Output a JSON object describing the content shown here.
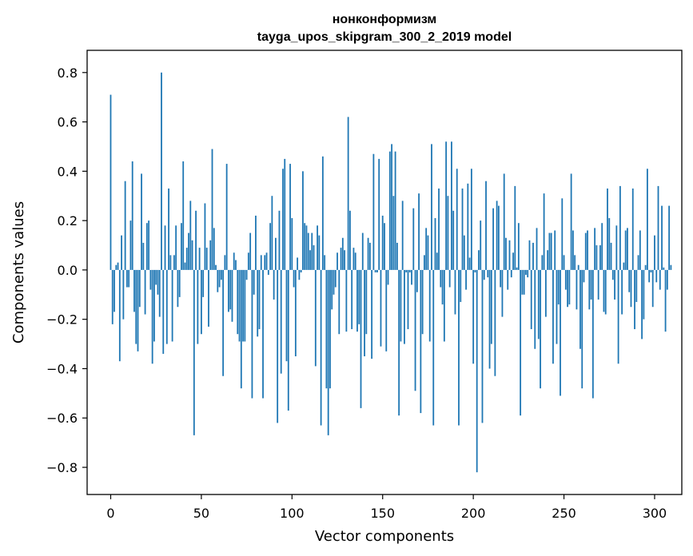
{
  "chart_data": {
    "type": "bar",
    "title": "нонконформизм",
    "subtitle": "tayga_upos_skipgram_300_2_2019 model",
    "xlabel": "Vector components",
    "ylabel": "Components values",
    "xlim": [
      -13,
      315
    ],
    "ylim": [
      -0.91,
      0.89
    ],
    "x_ticks": [
      0,
      50,
      100,
      150,
      200,
      250,
      300
    ],
    "y_ticks": [
      -0.8,
      -0.6,
      -0.4,
      -0.2,
      0.0,
      0.2,
      0.4,
      0.6,
      0.8
    ],
    "x_tick_labels": [
      "0",
      "50",
      "100",
      "150",
      "200",
      "250",
      "300"
    ],
    "y_tick_labels": [
      "−0.8",
      "−0.6",
      "−0.4",
      "−0.2",
      "0.0",
      "0.2",
      "0.4",
      "0.6",
      "0.8"
    ],
    "bar_color": "#1f77b4",
    "grid": false,
    "values": [
      0.71,
      -0.22,
      -0.17,
      0.02,
      0.03,
      -0.37,
      0.14,
      -0.2,
      0.36,
      -0.07,
      -0.07,
      0.2,
      0.44,
      -0.17,
      -0.3,
      -0.33,
      -0.15,
      0.39,
      0.11,
      -0.18,
      0.19,
      0.2,
      -0.08,
      -0.38,
      -0.29,
      -0.06,
      -0.1,
      -0.19,
      0.8,
      -0.34,
      0.18,
      -0.3,
      0.33,
      0.06,
      -0.29,
      0.06,
      0.18,
      -0.15,
      -0.11,
      0.19,
      0.44,
      0.03,
      0.09,
      0.15,
      0.28,
      0.12,
      -0.67,
      0.24,
      -0.3,
      0.09,
      -0.26,
      -0.11,
      0.27,
      0.09,
      -0.23,
      0.12,
      0.49,
      0.17,
      0.02,
      -0.09,
      -0.07,
      -0.04,
      -0.43,
      0.06,
      0.43,
      -0.17,
      -0.16,
      -0.21,
      0.07,
      0.04,
      -0.26,
      -0.29,
      -0.48,
      -0.29,
      -0.29,
      -0.04,
      0.07,
      0.15,
      -0.52,
      -0.1,
      0.22,
      -0.27,
      -0.24,
      0.06,
      -0.52,
      0.06,
      0.07,
      -0.02,
      0.19,
      0.3,
      -0.12,
      0.13,
      -0.62,
      0.24,
      -0.42,
      0.41,
      0.45,
      -0.37,
      -0.57,
      0.43,
      0.21,
      -0.07,
      -0.35,
      0.05,
      -0.04,
      -0.01,
      0.4,
      0.19,
      0.18,
      0.15,
      0.08,
      0.15,
      0.1,
      -0.39,
      0.18,
      0.14,
      -0.63,
      0.46,
      0.06,
      -0.48,
      -0.67,
      -0.48,
      -0.16,
      -0.1,
      -0.07,
      0.07,
      -0.26,
      0.09,
      0.13,
      0.08,
      -0.25,
      0.62,
      0.24,
      -0.24,
      0.09,
      0.07,
      -0.25,
      -0.22,
      -0.56,
      0.15,
      -0.35,
      -0.26,
      0.13,
      0.11,
      -0.36,
      0.47,
      -0.01,
      -0.01,
      0.45,
      -0.31,
      0.22,
      0.19,
      -0.33,
      -0.06,
      0.48,
      0.51,
      0.3,
      0.48,
      0.11,
      -0.59,
      -0.29,
      0.28,
      -0.3,
      -0.01,
      -0.24,
      -0.01,
      -0.06,
      0.25,
      -0.49,
      -0.09,
      0.31,
      -0.58,
      -0.26,
      0.06,
      0.17,
      0.14,
      -0.29,
      0.51,
      -0.63,
      0.21,
      0.07,
      0.33,
      -0.07,
      -0.14,
      -0.29,
      0.52,
      0.3,
      -0.07,
      0.52,
      0.24,
      -0.18,
      0.41,
      -0.63,
      -0.13,
      0.33,
      0.14,
      -0.08,
      0.35,
      0.05,
      0.41,
      -0.38,
      -0.01,
      -0.82,
      0.08,
      0.2,
      -0.62,
      -0.04,
      0.36,
      -0.03,
      -0.4,
      -0.3,
      0.25,
      -0.43,
      0.28,
      0.26,
      -0.07,
      -0.19,
      0.39,
      0.13,
      -0.08,
      0.12,
      -0.03,
      0.07,
      0.34,
      0.01,
      0.19,
      -0.59,
      -0.1,
      -0.1,
      -0.02,
      -0.03,
      0.12,
      -0.24,
      0.11,
      -0.32,
      0.17,
      -0.28,
      -0.48,
      0.06,
      0.31,
      -0.19,
      0.08,
      0.15,
      0.15,
      -0.38,
      0.16,
      -0.3,
      -0.14,
      -0.51,
      0.29,
      0.06,
      -0.08,
      -0.15,
      -0.14,
      0.39,
      0.16,
      0.06,
      -0.16,
      0.02,
      -0.32,
      -0.48,
      -0.05,
      0.15,
      0.16,
      -0.16,
      -0.12,
      -0.52,
      0.17,
      0.1,
      -0.12,
      0.1,
      0.19,
      -0.17,
      -0.18,
      0.33,
      0.21,
      0.11,
      -0.04,
      -0.12,
      0.18,
      -0.38,
      0.34,
      -0.18,
      0.03,
      0.16,
      0.17,
      -0.09,
      -0.15,
      0.33,
      -0.24,
      -0.13,
      0.06,
      0.16,
      -0.28,
      -0.2,
      0.02,
      0.41,
      -0.05,
      -0.01,
      -0.15,
      0.14,
      -0.05,
      0.34,
      -0.08,
      0.26,
      0.01,
      -0.25,
      -0.08,
      0.26,
      0.02
    ]
  }
}
